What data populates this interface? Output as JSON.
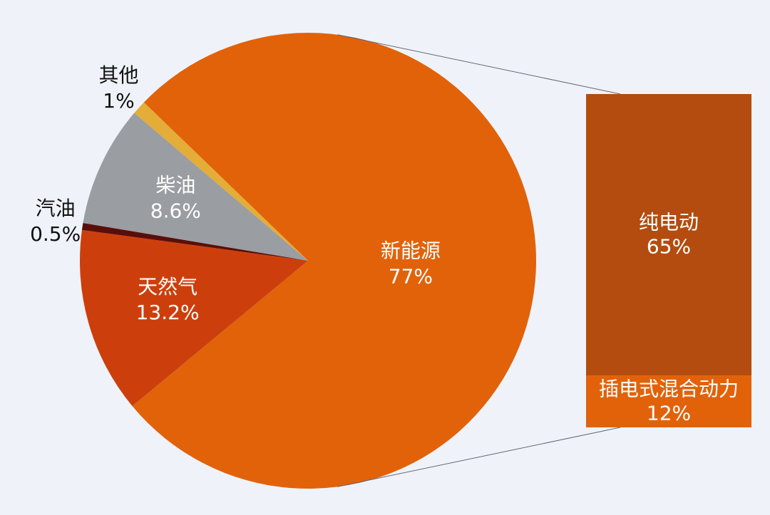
{
  "chart_data": {
    "type": "pie",
    "categories": [
      "新能源",
      "天然气",
      "汽油",
      "柴油",
      "其他"
    ],
    "values": [
      77,
      13.2,
      0.5,
      8.6,
      1
    ],
    "value_labels": [
      "77%",
      "13.2%",
      "0.5%",
      "8.6%",
      "1%"
    ],
    "colors": [
      "#e2620a",
      "#cc3f0c",
      "#5a0e0a",
      "#9a9da2",
      "#e3ad37"
    ],
    "breakdown": {
      "categories": [
        "纯电动",
        "插电式混合动力"
      ],
      "values": [
        65,
        12
      ],
      "value_labels": [
        "65%",
        "12%"
      ],
      "colors": [
        "#b34c0e",
        "#e2620a"
      ]
    }
  }
}
